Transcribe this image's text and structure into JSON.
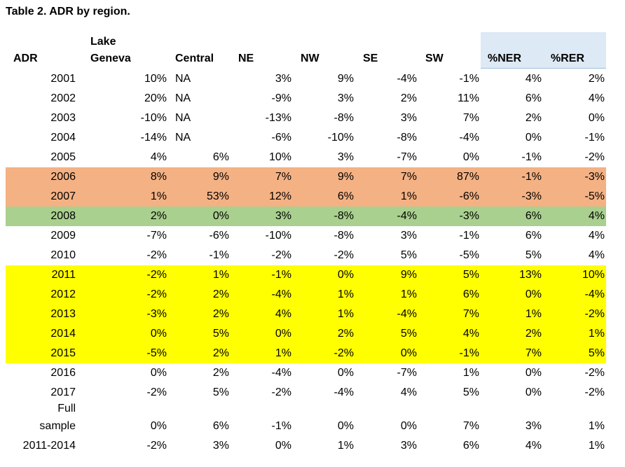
{
  "title": "Table 2. ADR by region.",
  "headers": {
    "adr": "ADR",
    "lake_geneva_1": "Lake",
    "lake_geneva_2": "Geneva",
    "central": "Central",
    "ne": "NE",
    "nw": "NW",
    "se": "SE",
    "sw": "SW",
    "ner": "%NER",
    "rer": "%RER"
  },
  "highlight_colors": {
    "orange": "#f4b183",
    "green": "#a9d08e",
    "yellow": "#ffff00",
    "header_shade": "#dde9f5"
  },
  "rows": [
    {
      "label": "2001",
      "lg": "10%",
      "central": "NA",
      "ne": "3%",
      "nw": "9%",
      "se": "-4%",
      "sw": "-1%",
      "ner": "4%",
      "rer": "2%"
    },
    {
      "label": "2002",
      "lg": "20%",
      "central": "NA",
      "ne": "-9%",
      "nw": "3%",
      "se": "2%",
      "sw": "11%",
      "ner": "6%",
      "rer": "4%"
    },
    {
      "label": "2003",
      "lg": "-10%",
      "central": "NA",
      "ne": "-13%",
      "nw": "-8%",
      "se": "3%",
      "sw": "7%",
      "ner": "2%",
      "rer": "0%"
    },
    {
      "label": "2004",
      "lg": "-14%",
      "central": "NA",
      "ne": "-6%",
      "nw": "-10%",
      "se": "-8%",
      "sw": "-4%",
      "ner": "0%",
      "rer": "-1%"
    },
    {
      "label": "2005",
      "lg": "4%",
      "central": "6%",
      "ne": "10%",
      "nw": "3%",
      "se": "-7%",
      "sw": "0%",
      "ner": "-1%",
      "rer": "-2%"
    },
    {
      "label": "2006",
      "lg": "8%",
      "central": "9%",
      "ne": "7%",
      "nw": "9%",
      "se": "7%",
      "sw": "87%",
      "ner": "-1%",
      "rer": "-3%"
    },
    {
      "label": "2007",
      "lg": "1%",
      "central": "53%",
      "ne": "12%",
      "nw": "6%",
      "se": "1%",
      "sw": "-6%",
      "ner": "-3%",
      "rer": "-5%"
    },
    {
      "label": "2008",
      "lg": "2%",
      "central": "0%",
      "ne": "3%",
      "nw": "-8%",
      "se": "-4%",
      "sw": "-3%",
      "ner": "6%",
      "rer": "4%"
    },
    {
      "label": "2009",
      "lg": "-7%",
      "central": "-6%",
      "ne": "-10%",
      "nw": "-8%",
      "se": "3%",
      "sw": "-1%",
      "ner": "6%",
      "rer": "4%"
    },
    {
      "label": "2010",
      "lg": "-2%",
      "central": "-1%",
      "ne": "-2%",
      "nw": "-2%",
      "se": "5%",
      "sw": "-5%",
      "ner": "5%",
      "rer": "4%"
    },
    {
      "label": "2011",
      "lg": "-2%",
      "central": "1%",
      "ne": "-1%",
      "nw": "0%",
      "se": "9%",
      "sw": "5%",
      "ner": "13%",
      "rer": "10%"
    },
    {
      "label": "2012",
      "lg": "-2%",
      "central": "2%",
      "ne": "-4%",
      "nw": "1%",
      "se": "1%",
      "sw": "6%",
      "ner": "0%",
      "rer": "-4%"
    },
    {
      "label": "2013",
      "lg": "-3%",
      "central": "2%",
      "ne": "4%",
      "nw": "1%",
      "se": "-4%",
      "sw": "7%",
      "ner": "1%",
      "rer": "-2%"
    },
    {
      "label": "2014",
      "lg": "0%",
      "central": "5%",
      "ne": "0%",
      "nw": "2%",
      "se": "5%",
      "sw": "4%",
      "ner": "2%",
      "rer": "1%"
    },
    {
      "label": "2015",
      "lg": "-5%",
      "central": "2%",
      "ne": "1%",
      "nw": "-2%",
      "se": "0%",
      "sw": "-1%",
      "ner": "7%",
      "rer": "5%"
    },
    {
      "label": "2016",
      "lg": "0%",
      "central": "2%",
      "ne": "-4%",
      "nw": "0%",
      "se": "-7%",
      "sw": "1%",
      "ner": "0%",
      "rer": "-2%"
    },
    {
      "label": "2017",
      "lg": "-2%",
      "central": "5%",
      "ne": "-2%",
      "nw": "-4%",
      "se": "4%",
      "sw": "5%",
      "ner": "0%",
      "rer": "-2%"
    }
  ],
  "full_sample": {
    "label_1": "Full",
    "label_2": "sample",
    "lg": "0%",
    "central": "6%",
    "ne": "-1%",
    "nw": "0%",
    "se": "0%",
    "sw": "7%",
    "ner": "3%",
    "rer": "1%"
  },
  "last_row": {
    "label": "2011-2014",
    "lg": "-2%",
    "central": "3%",
    "ne": "0%",
    "nw": "1%",
    "se": "3%",
    "sw": "6%",
    "ner": "4%",
    "rer": "1%"
  }
}
